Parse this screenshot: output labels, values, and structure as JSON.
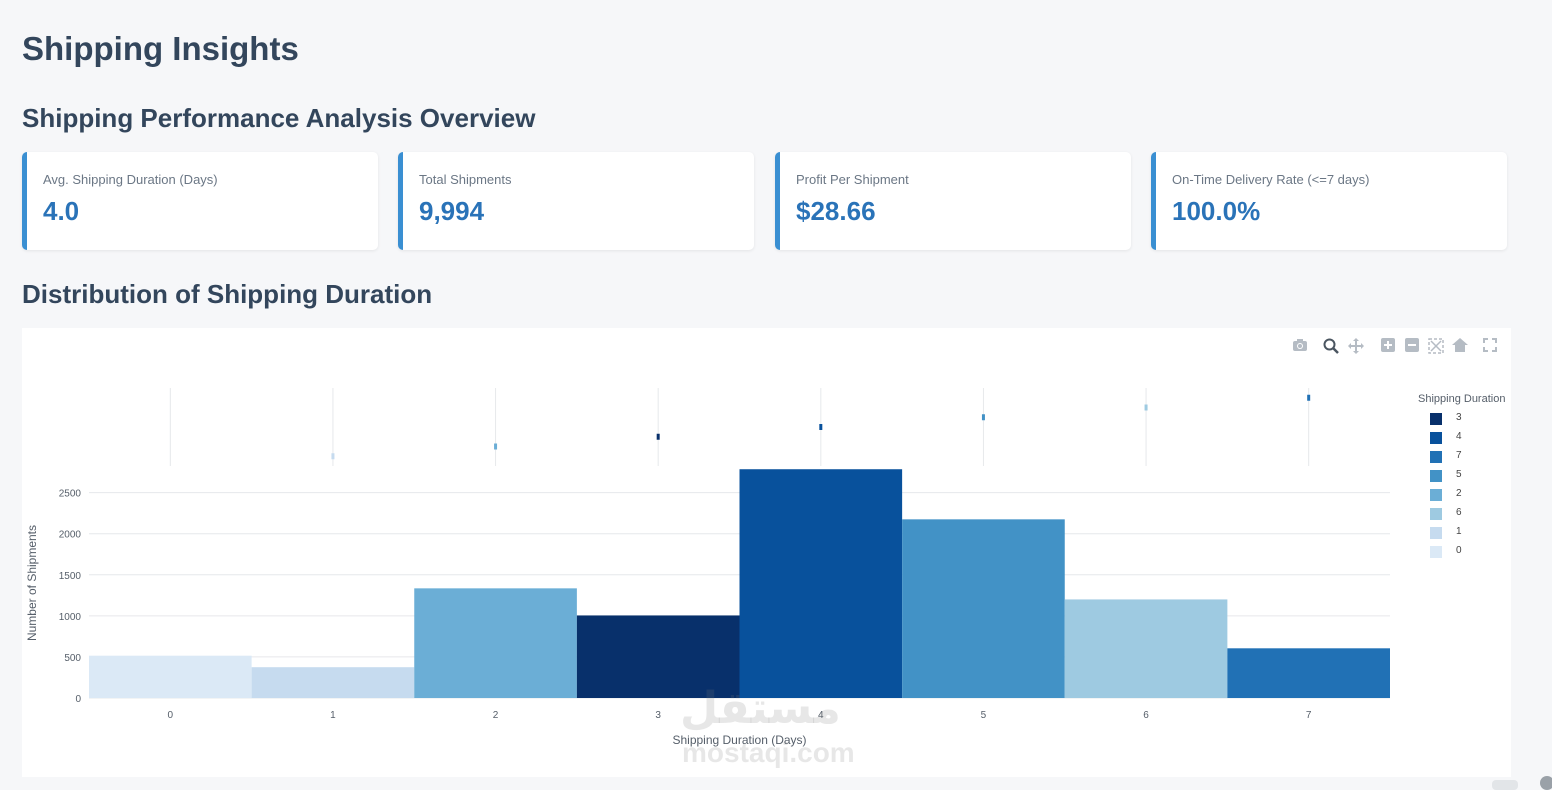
{
  "page": {
    "title": "Shipping Insights",
    "section1_title": "Shipping Performance Analysis Overview",
    "section2_title": "Distribution of Shipping Duration"
  },
  "kpis": [
    {
      "label": "Avg. Shipping Duration (Days)",
      "value": "4.0"
    },
    {
      "label": "Total Shipments",
      "value": "9,994"
    },
    {
      "label": "Profit Per Shipment",
      "value": "$28.66"
    },
    {
      "label": "On-Time Delivery Rate (<=7 days)",
      "value": "100.0%"
    }
  ],
  "modebar": [
    "camera-icon",
    "zoom-icon",
    "pan-icon",
    "zoom-in-icon",
    "zoom-out-icon",
    "autoscale-icon",
    "reset-axes-icon",
    "fullscreen-icon"
  ],
  "watermark": {
    "arabic": "مستقل",
    "latin": "mostaqi.com"
  },
  "colors": {
    "accent": "#3a8fd2",
    "kpi_value": "#2a73b8",
    "series": {
      "0": "#dbe9f6",
      "1": "#c6dbef",
      "2": "#6baed6",
      "3": "#08306b",
      "4": "#08519c",
      "5": "#4292c6",
      "6": "#9ecae1",
      "7": "#2171b5"
    }
  },
  "chart_data": {
    "type": "bar",
    "xlabel": "Shipping Duration (Days)",
    "ylabel": "Number of Shipments",
    "x_ticks": [
      "0",
      "1",
      "2",
      "3",
      "4",
      "5",
      "6",
      "7"
    ],
    "y_ticks": [
      "0",
      "500",
      "1000",
      "1500",
      "2000",
      "2500"
    ],
    "ylim": [
      0,
      2800
    ],
    "grid": true,
    "legend_title": "Shipping Duration",
    "legend_position": "right",
    "legend_order": [
      "3",
      "4",
      "7",
      "5",
      "2",
      "6",
      "1",
      "0"
    ],
    "bars": [
      {
        "x": 0,
        "value": 515
      },
      {
        "x": 1,
        "value": 375
      },
      {
        "x": 2,
        "value": 1335
      },
      {
        "x": 3,
        "value": 1005
      },
      {
        "x": 4,
        "value": 2785
      },
      {
        "x": 5,
        "value": 2175
      },
      {
        "x": 6,
        "value": 1200
      },
      {
        "x": 7,
        "value": 605
      }
    ],
    "strip_points": [
      {
        "x": 1,
        "y": 1
      },
      {
        "x": 2,
        "y": 2
      },
      {
        "x": 3,
        "y": 3
      },
      {
        "x": 4,
        "y": 4
      },
      {
        "x": 5,
        "y": 5
      },
      {
        "x": 6,
        "y": 6
      },
      {
        "x": 7,
        "y": 7
      }
    ]
  }
}
